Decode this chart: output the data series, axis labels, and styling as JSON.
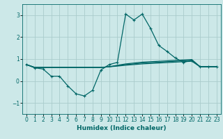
{
  "xlabel": "Humidex (Indice chaleur)",
  "bg_color": "#cce8e8",
  "line_color": "#006666",
  "grid_color": "#aacccc",
  "xlim": [
    -0.5,
    23.5
  ],
  "ylim": [
    -1.5,
    3.5
  ],
  "yticks": [
    -1,
    0,
    1,
    2,
    3
  ],
  "xticks": [
    0,
    1,
    2,
    3,
    4,
    5,
    6,
    7,
    8,
    9,
    10,
    11,
    12,
    13,
    14,
    15,
    16,
    17,
    18,
    19,
    20,
    21,
    22,
    23
  ],
  "series": [
    {
      "x": [
        0,
        1,
        2,
        3,
        4,
        5,
        6,
        7,
        8,
        9,
        10,
        11,
        12,
        13,
        14,
        15,
        16,
        17,
        18,
        19,
        20,
        21,
        22,
        23
      ],
      "y": [
        0.75,
        0.6,
        0.55,
        0.22,
        0.22,
        -0.22,
        -0.58,
        -0.68,
        -0.42,
        0.5,
        0.75,
        0.85,
        3.05,
        2.78,
        3.05,
        2.4,
        1.62,
        1.35,
        1.05,
        0.85,
        0.95,
        0.65,
        0.65,
        0.65
      ],
      "marker": "+"
    },
    {
      "x": [
        0,
        1,
        2,
        3,
        4,
        5,
        6,
        7,
        8,
        9,
        10,
        11,
        12,
        13,
        14,
        15,
        16,
        17,
        18,
        19,
        20,
        21,
        22,
        23
      ],
      "y": [
        0.75,
        0.62,
        0.62,
        0.62,
        0.62,
        0.62,
        0.62,
        0.62,
        0.62,
        0.62,
        0.65,
        0.68,
        0.72,
        0.75,
        0.78,
        0.8,
        0.82,
        0.84,
        0.86,
        0.88,
        0.9,
        0.65,
        0.65,
        0.65
      ],
      "marker": null
    },
    {
      "x": [
        0,
        1,
        2,
        3,
        4,
        5,
        6,
        7,
        8,
        9,
        10,
        11,
        12,
        13,
        14,
        15,
        16,
        17,
        18,
        19,
        20,
        21,
        22,
        23
      ],
      "y": [
        0.75,
        0.62,
        0.62,
        0.62,
        0.62,
        0.62,
        0.62,
        0.62,
        0.62,
        0.62,
        0.65,
        0.7,
        0.75,
        0.78,
        0.82,
        0.84,
        0.86,
        0.88,
        0.9,
        0.92,
        0.94,
        0.65,
        0.65,
        0.65
      ],
      "marker": null
    },
    {
      "x": [
        0,
        1,
        2,
        3,
        4,
        5,
        6,
        7,
        8,
        9,
        10,
        11,
        12,
        13,
        14,
        15,
        16,
        17,
        18,
        19,
        20,
        21,
        22,
        23
      ],
      "y": [
        0.75,
        0.62,
        0.62,
        0.62,
        0.62,
        0.62,
        0.62,
        0.62,
        0.62,
        0.62,
        0.65,
        0.72,
        0.78,
        0.82,
        0.86,
        0.88,
        0.9,
        0.92,
        0.94,
        0.96,
        0.98,
        0.65,
        0.65,
        0.65
      ],
      "marker": null
    }
  ]
}
